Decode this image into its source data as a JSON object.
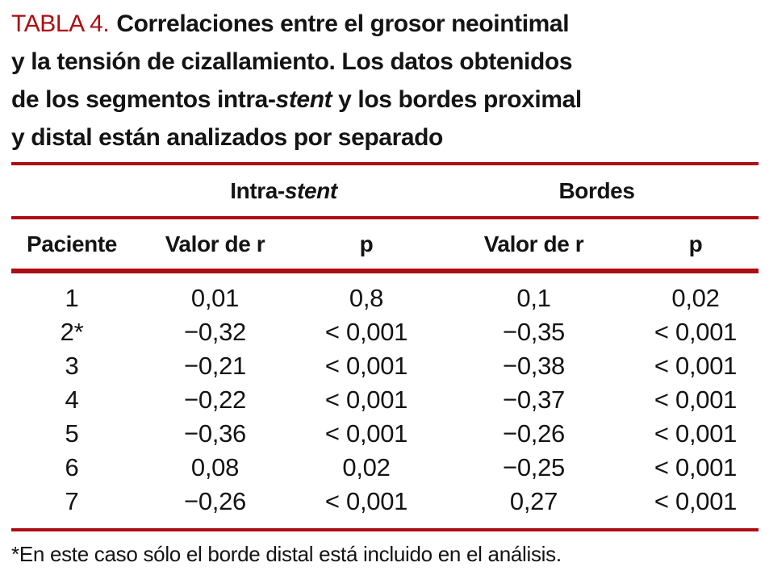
{
  "colors": {
    "accent_red": "#ae0c12",
    "text_black": "#141414",
    "background": "#ffffff"
  },
  "title": {
    "tag": "TABLA 4.",
    "line1": "Correlaciones entre el grosor neointimal",
    "line2": "y la tensión de cizallamiento. Los datos obtenidos",
    "line3_before": "de los segmentos intra-",
    "line3_italic": "stent",
    "line3_after": " y los bordes proximal",
    "line4": "y distal están analizados por separado"
  },
  "table": {
    "group_headers": {
      "intra_prefix": "Intra-",
      "intra_italic": "stent",
      "bordes": "Bordes"
    },
    "columns": {
      "paciente": "Paciente",
      "intra_valor_r": "Valor de r",
      "intra_p": "p",
      "bordes_valor_r": "Valor de r",
      "bordes_p": "p"
    },
    "rows": [
      {
        "paciente": "1",
        "intra_r": "0,01",
        "intra_p": "0,8",
        "bordes_r": "0,1",
        "bordes_p": "0,02"
      },
      {
        "paciente": "2*",
        "intra_r": "−0,32",
        "intra_p": "< 0,001",
        "bordes_r": "−0,35",
        "bordes_p": "< 0,001"
      },
      {
        "paciente": "3",
        "intra_r": "−0,21",
        "intra_p": "< 0,001",
        "bordes_r": "−0,38",
        "bordes_p": "< 0,001"
      },
      {
        "paciente": "4",
        "intra_r": "−0,22",
        "intra_p": "< 0,001",
        "bordes_r": "−0,37",
        "bordes_p": "< 0,001"
      },
      {
        "paciente": "5",
        "intra_r": "−0,36",
        "intra_p": "< 0,001",
        "bordes_r": "−0,26",
        "bordes_p": "< 0,001"
      },
      {
        "paciente": "6",
        "intra_r": "0,08",
        "intra_p": "0,02",
        "bordes_r": "−0,25",
        "bordes_p": "< 0,001"
      },
      {
        "paciente": "7",
        "intra_r": "−0,26",
        "intra_p": "< 0,001",
        "bordes_r": "0,27",
        "bordes_p": "< 0,001"
      }
    ],
    "footnote": "*En este caso sólo el borde distal está incluido en el análisis."
  }
}
